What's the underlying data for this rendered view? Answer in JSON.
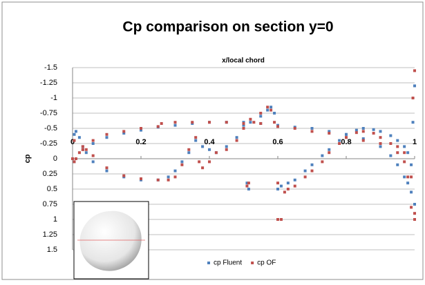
{
  "chart_data": {
    "type": "scatter",
    "title": "Cp comparison on section y=0",
    "x_label": "x/local chord",
    "y_label": "cp",
    "xlim": [
      0,
      1
    ],
    "xticks": [
      0,
      0.2,
      0.4,
      0.6,
      0.8,
      1
    ],
    "ylim": [
      -1.5,
      1.5
    ],
    "yticks": [
      -1.5,
      -1.25,
      -1,
      -0.75,
      -0.5,
      -0.25,
      0,
      0.25,
      0.5,
      0.75,
      1,
      1.25,
      1.5
    ],
    "y_inverted": true,
    "grid": true,
    "legend": "bottom",
    "series": [
      {
        "name": "cp Fluent",
        "color": "#4f81bd",
        "x": [
          0,
          0.005,
          0.01,
          0.02,
          0.03,
          0.04,
          0.06,
          0.1,
          0.15,
          0.2,
          0.25,
          0.28,
          0.3,
          0.32,
          0.34,
          0.36,
          0.38,
          0.4,
          0.42,
          0.45,
          0.48,
          0.5,
          0.51,
          0.515,
          0.52,
          0.55,
          0.57,
          0.58,
          0.59,
          0.005,
          0.03,
          0.06,
          0.1,
          0.15,
          0.2,
          0.25,
          0.3,
          0.35,
          0.4,
          0.45,
          0.5,
          0.55,
          0.6,
          0.65,
          0.7,
          0.75,
          0.8,
          0.85,
          0.9,
          0.93,
          0.95,
          0.97,
          0.98,
          0.99,
          1,
          0.6,
          0.61,
          0.63,
          0.65,
          0.68,
          0.7,
          0.73,
          0.75,
          0.78,
          0.8,
          0.83,
          0.85,
          0.88,
          0.9,
          0.93,
          0.95,
          0.97,
          0.98,
          0.99,
          0.995,
          1
        ],
        "values": [
          0,
          -0.4,
          -0.45,
          -0.35,
          -0.2,
          -0.1,
          0.05,
          0.2,
          0.3,
          0.35,
          0.35,
          0.3,
          0.2,
          0.05,
          -0.1,
          -0.3,
          -0.2,
          -0.15,
          -0.1,
          -0.2,
          -0.35,
          -0.55,
          0.4,
          0.5,
          -0.6,
          -0.7,
          -0.8,
          -0.85,
          -0.75,
          0.05,
          -0.15,
          -0.25,
          -0.35,
          -0.42,
          -0.47,
          -0.52,
          -0.55,
          -0.58,
          -0.6,
          -0.6,
          -0.6,
          -0.58,
          -0.55,
          -0.52,
          -0.5,
          -0.45,
          -0.4,
          -0.33,
          -0.2,
          -0.05,
          0.1,
          0.3,
          0.4,
          0.55,
          0.75,
          0.5,
          0.45,
          0.4,
          0.35,
          0.2,
          0.1,
          -0.05,
          -0.15,
          -0.3,
          -0.4,
          -0.47,
          -0.5,
          -0.48,
          -0.45,
          -0.38,
          -0.3,
          -0.2,
          -0.1,
          0.1,
          -0.6,
          -1.2
        ]
      },
      {
        "name": "cp OF",
        "color": "#c0504d",
        "x": [
          0,
          0.005,
          0.01,
          0.02,
          0.03,
          0.04,
          0.06,
          0.1,
          0.15,
          0.2,
          0.25,
          0.28,
          0.3,
          0.32,
          0.34,
          0.36,
          0.37,
          0.38,
          0.4,
          0.42,
          0.45,
          0.48,
          0.5,
          0.51,
          0.515,
          0.52,
          0.53,
          0.55,
          0.57,
          0.58,
          0.59,
          0.005,
          0.03,
          0.06,
          0.1,
          0.15,
          0.2,
          0.25,
          0.26,
          0.3,
          0.35,
          0.4,
          0.45,
          0.5,
          0.55,
          0.6,
          0.65,
          0.7,
          0.75,
          0.8,
          0.85,
          0.9,
          0.95,
          0.97,
          0.99,
          1,
          0.6,
          0.6,
          0.61,
          0.62,
          0.63,
          0.65,
          0.68,
          0.7,
          0.73,
          0.75,
          0.78,
          0.8,
          0.83,
          0.85,
          0.88,
          0.9,
          0.93,
          0.95,
          0.97,
          0.98,
          0.99,
          0.995,
          1,
          1
        ],
        "values": [
          0,
          0.05,
          0,
          -0.1,
          -0.2,
          -0.15,
          -0.05,
          0.15,
          0.28,
          0.33,
          0.35,
          0.35,
          0.3,
          0.1,
          -0.15,
          -0.35,
          0.05,
          0.15,
          0.05,
          -0.1,
          -0.15,
          -0.3,
          -0.5,
          0.45,
          0.4,
          -0.65,
          -0.6,
          -0.75,
          -0.85,
          -0.8,
          -0.6,
          -0.3,
          -0.15,
          -0.3,
          -0.4,
          -0.45,
          -0.5,
          -0.53,
          -0.58,
          -0.6,
          -0.6,
          -0.6,
          -0.6,
          -0.58,
          -0.58,
          -0.53,
          -0.5,
          -0.45,
          -0.42,
          -0.35,
          -0.3,
          -0.25,
          -0.2,
          -0.1,
          0.3,
          1,
          1,
          0.4,
          1,
          0.55,
          0.5,
          0.45,
          0.3,
          0.2,
          0.05,
          -0.1,
          -0.25,
          -0.35,
          -0.43,
          -0.45,
          -0.42,
          -0.35,
          -0.25,
          -0.1,
          0.05,
          0.3,
          0.8,
          -1,
          -1.45,
          0.9
        ]
      }
    ]
  }
}
